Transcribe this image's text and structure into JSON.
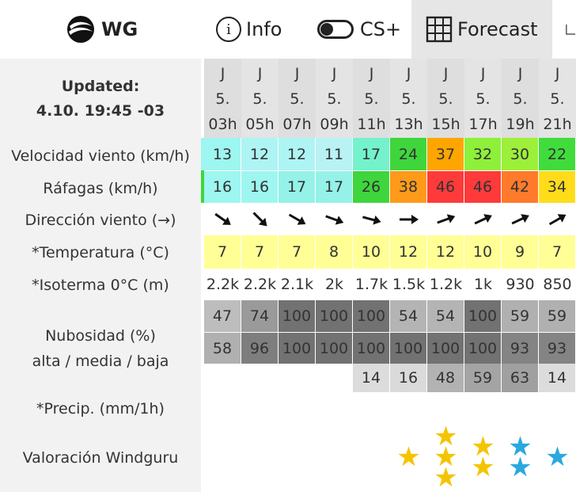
{
  "nav": {
    "logo_label": "WG",
    "info_label": "Info",
    "info_icon_glyph": "i",
    "cs_label": "CS+",
    "forecast_label": "Forecast"
  },
  "labels": {
    "updated_title": "Updated:",
    "updated_value": "4.10. 19:45 -03",
    "wind_speed": "Velocidad viento (km/h)",
    "gusts": "Ráfagas (km/h)",
    "direction": "Dirección viento (→)",
    "temperature": "*Temperatura (°C)",
    "isotherm": "*Isoterma 0°C (m)",
    "cloud_line1": "Nubosidad (%)",
    "cloud_line2": "alta / media / baja",
    "precip": "*Precip. (mm/1h)",
    "rating": "Valoración Windguru"
  },
  "columns": [
    {
      "day": "J",
      "date": "5.",
      "hour": "03h",
      "wind": "13",
      "gust": "16",
      "dir_angle": 35,
      "temp": "7",
      "iso": "2.2k",
      "c1": "47",
      "c2": "58",
      "c3": "",
      "stars": 0,
      "star_color": ""
    },
    {
      "day": "J",
      "date": "5.",
      "hour": "05h",
      "wind": "12",
      "gust": "16",
      "dir_angle": 45,
      "temp": "7",
      "iso": "2.2k",
      "c1": "74",
      "c2": "96",
      "c3": "",
      "stars": 0,
      "star_color": ""
    },
    {
      "day": "J",
      "date": "5.",
      "hour": "07h",
      "wind": "12",
      "gust": "17",
      "dir_angle": 30,
      "temp": "7",
      "iso": "2.1k",
      "c1": "100",
      "c2": "100",
      "c3": "",
      "stars": 0,
      "star_color": ""
    },
    {
      "day": "J",
      "date": "5.",
      "hour": "09h",
      "wind": "11",
      "gust": "17",
      "dir_angle": 20,
      "temp": "8",
      "iso": "2k",
      "c1": "100",
      "c2": "100",
      "c3": "",
      "stars": 0,
      "star_color": ""
    },
    {
      "day": "J",
      "date": "5.",
      "hour": "11h",
      "wind": "17",
      "gust": "26",
      "dir_angle": 15,
      "temp": "10",
      "iso": "1.7k",
      "c1": "100",
      "c2": "100",
      "c3": "14",
      "stars": 0,
      "star_color": ""
    },
    {
      "day": "J",
      "date": "5.",
      "hour": "13h",
      "wind": "24",
      "gust": "38",
      "dir_angle": 0,
      "temp": "12",
      "iso": "1.5k",
      "c1": "54",
      "c2": "100",
      "c3": "16",
      "stars": 1,
      "star_color": "#f5c400"
    },
    {
      "day": "J",
      "date": "5.",
      "hour": "15h",
      "wind": "37",
      "gust": "46",
      "dir_angle": -20,
      "temp": "12",
      "iso": "1.2k",
      "c1": "54",
      "c2": "100",
      "c3": "48",
      "stars": 3,
      "star_color": "#f5c400"
    },
    {
      "day": "J",
      "date": "5.",
      "hour": "17h",
      "wind": "32",
      "gust": "46",
      "dir_angle": -25,
      "temp": "10",
      "iso": "1k",
      "c1": "100",
      "c2": "100",
      "c3": "59",
      "stars": 2,
      "star_color": "#f5c400"
    },
    {
      "day": "J",
      "date": "5.",
      "hour": "19h",
      "wind": "30",
      "gust": "42",
      "dir_angle": -25,
      "temp": "9",
      "iso": "930",
      "c1": "59",
      "c2": "93",
      "c3": "63",
      "stars": 2,
      "star_color": "#2aa8e0"
    },
    {
      "day": "J",
      "date": "5.",
      "hour": "21h",
      "wind": "22",
      "gust": "34",
      "dir_angle": -30,
      "temp": "7",
      "iso": "850",
      "c1": "59",
      "c2": "93",
      "c3": "14",
      "stars": 1,
      "star_color": "#2aa8e0"
    }
  ],
  "colors": {
    "wind": [
      "#9ef6f0",
      "#aef4f4",
      "#aef4f4",
      "#b8f2f4",
      "#73f2cc",
      "#3ed63c",
      "#ffa500",
      "#8ef03a",
      "#9cf03a",
      "#40dc3c"
    ],
    "gust": [
      "#9ef6f0",
      "#9ef6f0",
      "#94f2e8",
      "#94f2e8",
      "#3ed63c",
      "#ff9a1a",
      "#ff3a3a",
      "#ff3a3a",
      "#ff7a2a",
      "#ffdc1a"
    ],
    "c1": [
      "#bdbdbd",
      "#9a9a9a",
      "#727272",
      "#727272",
      "#727272",
      "#b4b4b4",
      "#b4b4b4",
      "#727272",
      "#b0b0b0",
      "#b0b0b0"
    ],
    "c2": [
      "#b0b0b0",
      "#7e7e7e",
      "#727272",
      "#727272",
      "#727272",
      "#727272",
      "#727272",
      "#727272",
      "#848484",
      "#848484"
    ],
    "c3": [
      "#ffffff",
      "#ffffff",
      "#ffffff",
      "#ffffff",
      "#dcdcdc",
      "#dadada",
      "#b2b2b2",
      "#a4a4a4",
      "#a0a0a0",
      "#dcdcdc"
    ]
  }
}
